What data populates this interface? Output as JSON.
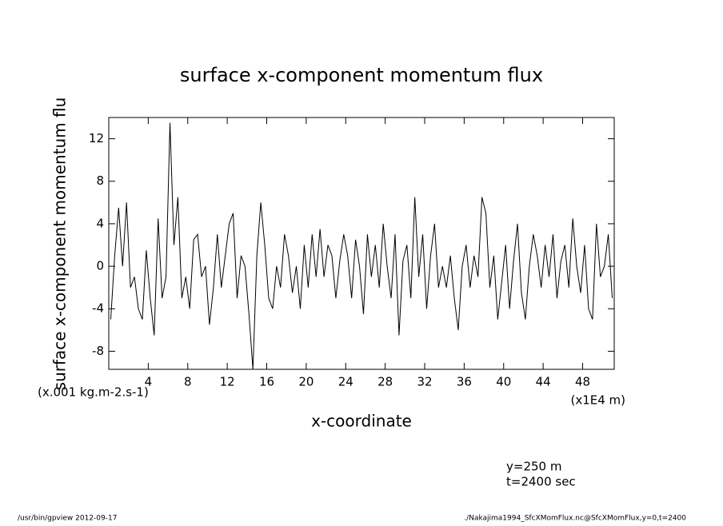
{
  "chart_data": {
    "type": "line",
    "title": "surface x-component momentum flux",
    "ylabel": "surface x-component momentum flu",
    "yunit": "(x.001 kg.m-2.s-1)",
    "xlabel": "x-coordinate",
    "xunit": "(x1E4 m)",
    "annotations": [
      "y=250 m",
      "t=2400 sec"
    ],
    "footer": [
      "/usr/bin/gpview  2012-09-17",
      "./Nakajima1994_SfcXMomFlux.nc@SfcXMomFlux,y=0,t=2400"
    ],
    "x": [
      0.2,
      0.6,
      1.0,
      1.4,
      1.8,
      2.2,
      2.6,
      3.0,
      3.4,
      3.8,
      4.2,
      4.6,
      5.0,
      5.4,
      5.8,
      6.2,
      6.6,
      7.0,
      7.4,
      7.8,
      8.2,
      8.6,
      9.0,
      9.4,
      9.8,
      10.2,
      10.6,
      11.0,
      11.4,
      11.8,
      12.2,
      12.6,
      13.0,
      13.4,
      13.8,
      14.2,
      14.6,
      15.0,
      15.4,
      15.8,
      16.2,
      16.6,
      17.0,
      17.4,
      17.8,
      18.2,
      18.6,
      19.0,
      19.4,
      19.8,
      20.2,
      20.6,
      21.0,
      21.4,
      21.8,
      22.2,
      22.6,
      23.0,
      23.4,
      23.8,
      24.2,
      24.6,
      25.0,
      25.4,
      25.8,
      26.2,
      26.6,
      27.0,
      27.4,
      27.8,
      28.2,
      28.6,
      29.0,
      29.4,
      29.8,
      30.2,
      30.6,
      31.0,
      31.4,
      31.8,
      32.2,
      32.6,
      33.0,
      33.4,
      33.8,
      34.2,
      34.6,
      35.0,
      35.4,
      35.8,
      36.2,
      36.6,
      37.0,
      37.4,
      37.8,
      38.2,
      38.6,
      39.0,
      39.4,
      39.8,
      40.2,
      40.6,
      41.0,
      41.4,
      41.8,
      42.2,
      42.6,
      43.0,
      43.4,
      43.8,
      44.2,
      44.6,
      45.0,
      45.4,
      45.8,
      46.2,
      46.6,
      47.0,
      47.4,
      47.8,
      48.2,
      48.6,
      49.0,
      49.4,
      49.8,
      50.2,
      50.6,
      51.0
    ],
    "series": [
      {
        "color": "#000000",
        "values": [
          -5,
          1,
          5.5,
          0,
          6,
          -2,
          -1,
          -4,
          -5,
          1.5,
          -3,
          -6.5,
          4.5,
          -3,
          -1,
          13.5,
          2,
          6.5,
          -3,
          -1,
          -4,
          2.5,
          3,
          -1,
          0,
          -5.5,
          -2,
          3,
          -2,
          1,
          4,
          5,
          -3,
          1,
          0,
          -4.5,
          -9.7,
          1,
          6,
          2,
          -3,
          -4,
          0,
          -2,
          3,
          1,
          -2.5,
          0,
          -4,
          2,
          -2,
          3,
          -1,
          3.5,
          -1,
          2,
          1,
          -3,
          0.5,
          3,
          1,
          -3,
          2.5,
          0,
          -4.5,
          3,
          -1,
          2,
          -2,
          4,
          0,
          -3,
          3,
          -6.5,
          0.5,
          2,
          -3,
          6.5,
          -1,
          3,
          -4,
          1,
          4,
          -2,
          0,
          -2,
          1,
          -3,
          -6,
          0,
          2,
          -2,
          1,
          -1,
          6.5,
          5,
          -2,
          1,
          -5,
          -1.5,
          2,
          -4,
          0.5,
          4,
          -2.5,
          -5,
          0,
          3,
          1,
          -2,
          2,
          -1,
          3,
          -3,
          0.5,
          2,
          -2,
          4.5,
          0,
          -2.5,
          2,
          -4,
          -5,
          4,
          -1,
          0,
          3,
          -3
        ]
      }
    ],
    "xlim": [
      0,
      51.2
    ],
    "ylim": [
      -9.7,
      14
    ],
    "xticks": [
      4,
      8,
      12,
      16,
      20,
      24,
      28,
      32,
      36,
      40,
      44,
      48
    ],
    "yticks": [
      -8,
      -4,
      0,
      4,
      8,
      12
    ]
  }
}
